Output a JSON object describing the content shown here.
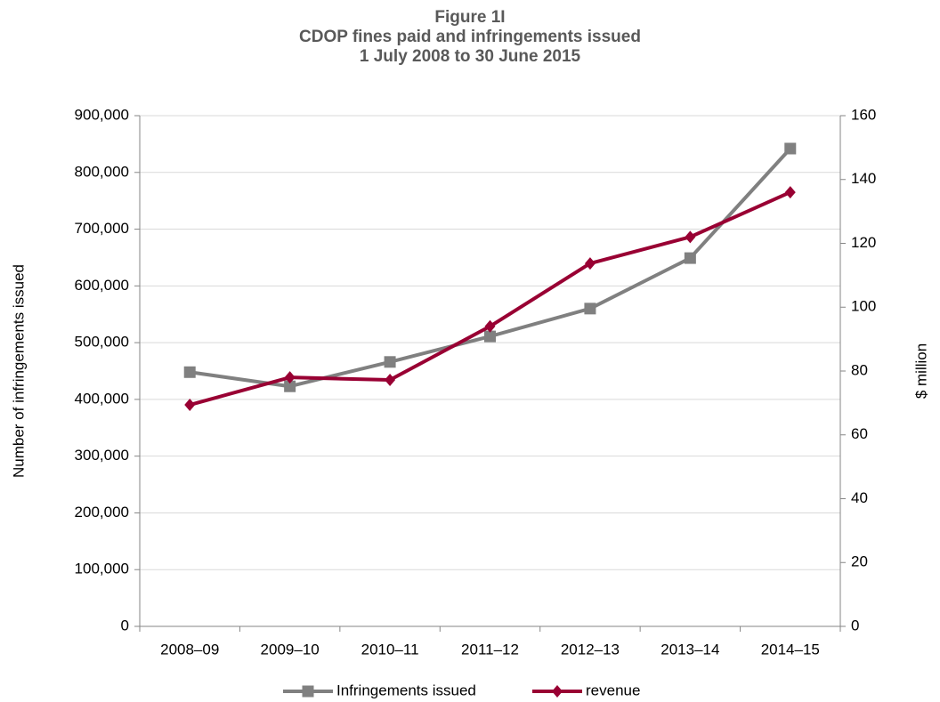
{
  "chart_data": {
    "type": "line",
    "title": "Figure 1I",
    "subtitle": [
      "CDOP fines paid and infringements issued",
      "1 July 2008 to 30 June 2015"
    ],
    "y_label": "Number of infringements issued",
    "y2_label": "$ million",
    "categories": [
      "2008–09",
      "2009–10",
      "2010–11",
      "2011–12",
      "2012–13",
      "2013–14",
      "2014–15"
    ],
    "series": [
      {
        "name": "Infringements issued",
        "color": "#808080",
        "marker": "square",
        "values": [
          448000,
          423000,
          466000,
          511000,
          560000,
          649000,
          842000
        ]
      },
      {
        "name": "revenue",
        "color": "#990033",
        "marker": "diamond",
        "axis": "y2",
        "values": [
          69.4,
          78,
          77.2,
          94,
          113.7,
          122,
          136
        ]
      }
    ],
    "ylim": [
      0,
      900000
    ],
    "yticks": [
      0,
      {
        "value": 100000,
        "label": "100,000"
      },
      {
        "value": 200000,
        "label": "200,000"
      },
      {
        "value": 300000,
        "label": "300,000"
      },
      {
        "value": 400000,
        "label": "400,000"
      },
      {
        "value": 500000,
        "label": "500,000"
      },
      {
        "value": 600000,
        "label": "600,000"
      },
      {
        "value": 700000,
        "label": "700,000"
      },
      {
        "value": 800000,
        "label": "800,000"
      },
      {
        "value": 900000,
        "label": "900,000"
      }
    ],
    "y2lim": [
      0,
      160
    ],
    "y2ticks": [
      0,
      20,
      40,
      60,
      80,
      100,
      120,
      140,
      160
    ],
    "grid": true,
    "legend": "bottom"
  }
}
